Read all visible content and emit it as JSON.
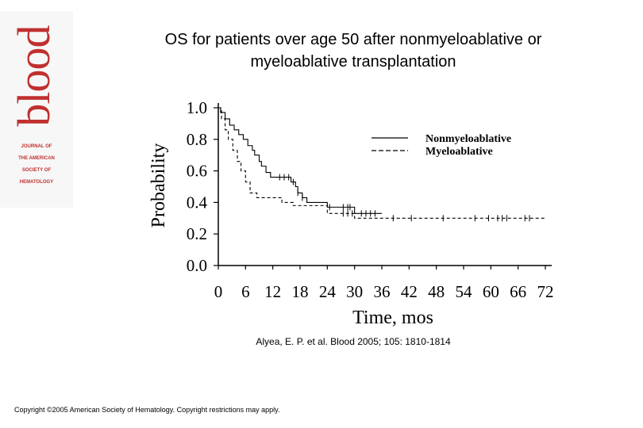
{
  "logo": {
    "word": "blood",
    "lines": [
      "JOURNAL OF",
      "THE AMERICAN",
      "SOCIETY OF",
      "HEMATOLOGY"
    ],
    "color": "#c0302f"
  },
  "slide": {
    "title_line1": "OS for patients over age 50 after nonmyeloablative or",
    "title_line2": "myeloablative transplantation",
    "citation": "Alyea, E. P. et al. Blood 2005; 105: 1810-1814",
    "copyright": "Copyright ©2005 American Society of Hematology. Copyright restrictions may apply."
  },
  "chart_data": {
    "type": "line",
    "title": "",
    "xlabel": "Time, mos",
    "ylabel": "Probability",
    "xlim": [
      0,
      72
    ],
    "ylim": [
      0,
      1.0
    ],
    "x_ticks": [
      "0",
      "6",
      "12",
      "18",
      "24",
      "30",
      "36",
      "42",
      "48",
      "54",
      "60",
      "66",
      "72"
    ],
    "y_ticks": [
      "1.0",
      "0.8",
      "0.6",
      "0.4",
      "0.2",
      "0.0"
    ],
    "legend_position": "top-right",
    "grid": false,
    "series": [
      {
        "name": "Nonmyeloablative",
        "style": "solid",
        "points": [
          [
            0,
            1.0
          ],
          [
            0.5,
            0.97
          ],
          [
            1.5,
            0.93
          ],
          [
            2.5,
            0.89
          ],
          [
            3.5,
            0.86
          ],
          [
            4.5,
            0.83
          ],
          [
            5.5,
            0.8
          ],
          [
            6.5,
            0.76
          ],
          [
            7.5,
            0.73
          ],
          [
            8,
            0.7
          ],
          [
            9,
            0.66
          ],
          [
            9.5,
            0.63
          ],
          [
            10.5,
            0.59
          ],
          [
            11.5,
            0.56
          ],
          [
            15,
            0.56
          ],
          [
            16,
            0.53
          ],
          [
            17,
            0.5
          ],
          [
            17.5,
            0.46
          ],
          [
            18.5,
            0.43
          ],
          [
            19.5,
            0.4
          ],
          [
            23.5,
            0.4
          ],
          [
            24,
            0.37
          ],
          [
            29,
            0.37
          ],
          [
            30,
            0.33
          ],
          [
            36,
            0.33
          ]
        ],
        "censor_x": [
          13.5,
          14.5,
          15.5,
          16.5,
          17.5,
          18.5,
          24.5,
          27.5,
          28.5,
          29,
          31.5,
          32.5,
          33.5,
          34.5
        ]
      },
      {
        "name": "Myeloablative",
        "style": "dashed",
        "points": [
          [
            0,
            1.0
          ],
          [
            0.7,
            0.93
          ],
          [
            1.5,
            0.86
          ],
          [
            2.2,
            0.8
          ],
          [
            3.2,
            0.73
          ],
          [
            4.2,
            0.66
          ],
          [
            5,
            0.6
          ],
          [
            6,
            0.53
          ],
          [
            7,
            0.46
          ],
          [
            8.5,
            0.43
          ],
          [
            12,
            0.43
          ],
          [
            14,
            0.4
          ],
          [
            16.5,
            0.38
          ],
          [
            20,
            0.38
          ],
          [
            24,
            0.33
          ],
          [
            30,
            0.3
          ],
          [
            60,
            0.3
          ],
          [
            72,
            0.3
          ]
        ],
        "censor_x": [
          27.5,
          28.5,
          29.5,
          38.5,
          42.5,
          49.5,
          56.5,
          59.5,
          61.5,
          62.5,
          63.5,
          67.5,
          68.5
        ]
      }
    ]
  }
}
